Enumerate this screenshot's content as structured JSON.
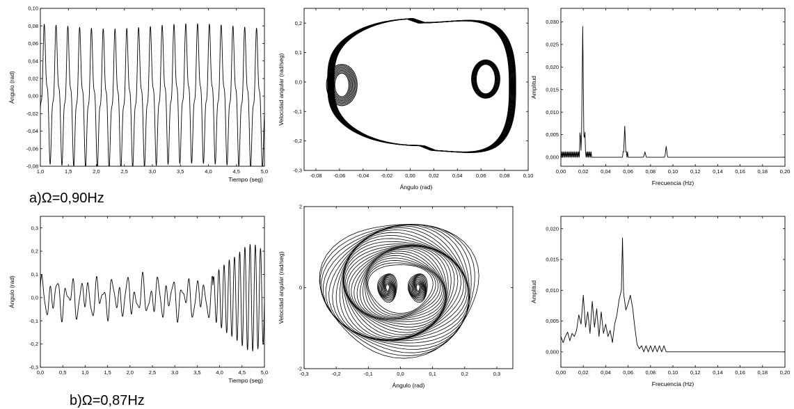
{
  "colors": {
    "line": "#000000",
    "background": "#ffffff"
  },
  "captions": [
    {
      "letter": "a)",
      "symbol": "Ω",
      "value": "=0,90Hz"
    },
    {
      "letter": "b)",
      "symbol": "Ω",
      "value": "=0,87Hz"
    }
  ],
  "chart_data": [
    {
      "id": "a-time",
      "type": "line",
      "xlabel": "Tiempo (seg)",
      "ylabel": "Ángulo (rad)",
      "xlim": [
        1.0,
        5.0
      ],
      "ylim": [
        -0.08,
        0.1
      ],
      "xticks": [
        "1,0",
        "1,5",
        "2,0",
        "2,5",
        "3,0",
        "3,5",
        "4,0",
        "4,5",
        "5,0"
      ],
      "yticks": [
        "-0,08",
        "-0,06",
        "-0,04",
        "-0,02",
        "0,00",
        "0,02",
        "0,04",
        "0,06",
        "0,08",
        "0,10"
      ],
      "grid": false,
      "signal": {
        "amplitude": 0.062,
        "frequency_hz": 4.75,
        "harmonic_amplitude": 0.018,
        "cycles": 19
      }
    },
    {
      "id": "a-phase",
      "type": "line",
      "xlabel": "Ángulo (rad)",
      "ylabel": "Velocidad angular (rad/seg)",
      "xlim": [
        -0.09,
        0.1
      ],
      "ylim": [
        -0.3,
        0.25
      ],
      "xticks": [
        "-0,08",
        "-0,06",
        "-0,04",
        "-0,02",
        "0,00",
        "0,02",
        "0,04",
        "0,06",
        "0,08",
        "0,10"
      ],
      "yticks": [
        "-0,3",
        "-0,2",
        "-0,1",
        "0,0",
        "0,1",
        "0,2"
      ],
      "grid": false,
      "orbits": [
        {
          "role": "outer",
          "x_range": [
            -0.067,
            0.087
          ],
          "y_range": [
            -0.215,
            0.215
          ]
        },
        {
          "role": "inner-left",
          "center": [
            -0.058,
            -0.01
          ],
          "half_width": [
            0.006,
            0.013
          ],
          "half_height": [
            0.04,
            0.07
          ]
        },
        {
          "role": "inner-right",
          "center": [
            0.064,
            0.01
          ],
          "half_width": [
            0.008,
            0.012
          ],
          "half_height": [
            0.05,
            0.065
          ]
        }
      ]
    },
    {
      "id": "a-spectrum",
      "type": "line",
      "xlabel": "Frecuencia (Hz)",
      "ylabel": "Amplitud",
      "xlim": [
        0.0,
        0.2
      ],
      "ylim": [
        -0.002,
        0.033
      ],
      "xticks": [
        "0,00",
        "0,02",
        "0,04",
        "0,06",
        "0,08",
        "0,10",
        "0,12",
        "0,14",
        "0,16",
        "0,18",
        "0,20"
      ],
      "yticks": [
        "0,000",
        "0,005",
        "0,010",
        "0,015",
        "0,020",
        "0,025",
        "0,030"
      ],
      "grid": false,
      "peaks": [
        {
          "x": 0.0195,
          "y": 0.029
        },
        {
          "x": 0.057,
          "y": 0.0069
        },
        {
          "x": 0.075,
          "y": 0.0012
        },
        {
          "x": 0.094,
          "y": 0.0024
        }
      ],
      "noise_floor": 0.0012,
      "noise_range": [
        0.0,
        0.028
      ]
    },
    {
      "id": "b-time",
      "type": "line",
      "xlabel": "Tiempo (seg)",
      "ylabel": "Ángulo (rad)",
      "xlim": [
        0.0,
        5.0
      ],
      "ylim": [
        -0.3,
        0.35
      ],
      "xticks": [
        "0,0",
        "0,5",
        "1,0",
        "1,5",
        "2,0",
        "2,5",
        "3,0",
        "3,5",
        "4,0",
        "4,5",
        "5,0"
      ],
      "yticks": [
        "-0,3",
        "-0,2",
        "-0,1",
        "0,0",
        "0,1",
        "0,2",
        "0,3"
      ],
      "grid": false,
      "signal": {
        "amplitude_low": 0.085,
        "amplitude_high": 0.23,
        "switch_time": 3.85,
        "frequency_hz": 5.2
      }
    },
    {
      "id": "b-phase",
      "type": "line",
      "xlabel": "Ángulo (rad)",
      "ylabel": "Velocidad angular (rad/seg)",
      "xlim": [
        -0.3,
        0.35
      ],
      "ylim": [
        -2,
        2
      ],
      "xticks": [
        "-0,3",
        "-0,2",
        "-0,1",
        "0,0",
        "0,1",
        "0,2",
        "0,3"
      ],
      "yticks": [
        "-2",
        "0",
        "2"
      ],
      "grid": false,
      "orbits": [
        {
          "role": "outer",
          "center": [
            0.0,
            0.0
          ],
          "rx_range": [
            0.1,
            0.245
          ],
          "ry_range": [
            0.6,
            1.65
          ],
          "loops": 26
        },
        {
          "role": "inner-left",
          "center": [
            -0.04,
            0.0
          ],
          "rx_range": [
            0.005,
            0.03
          ],
          "ry_range": [
            0.08,
            0.35
          ],
          "loops": 12
        },
        {
          "role": "inner-right",
          "center": [
            0.055,
            0.0
          ],
          "rx_range": [
            0.005,
            0.03
          ],
          "ry_range": [
            0.08,
            0.35
          ],
          "loops": 12
        }
      ]
    },
    {
      "id": "b-spectrum",
      "type": "line",
      "xlabel": "Frecuencia (Hz)",
      "ylabel": "Amplitud",
      "xlim": [
        0.0,
        0.2
      ],
      "ylim": [
        -0.0025,
        0.022
      ],
      "xticks": [
        "0,00",
        "0,02",
        "0,04",
        "0,06",
        "0,08",
        "0,10",
        "0,12",
        "0,14",
        "0,16",
        "0,18",
        "0,20"
      ],
      "yticks": [
        "0,000",
        "0,005",
        "0,010",
        "0,015",
        "0,020"
      ],
      "grid": false,
      "points": [
        [
          0.0,
          0.0025
        ],
        [
          0.002,
          0.0015
        ],
        [
          0.004,
          0.0025
        ],
        [
          0.006,
          0.0032
        ],
        [
          0.008,
          0.0018
        ],
        [
          0.01,
          0.003
        ],
        [
          0.012,
          0.0025
        ],
        [
          0.014,
          0.0035
        ],
        [
          0.016,
          0.006
        ],
        [
          0.018,
          0.0045
        ],
        [
          0.02,
          0.0092
        ],
        [
          0.022,
          0.004
        ],
        [
          0.024,
          0.0065
        ],
        [
          0.026,
          0.003
        ],
        [
          0.028,
          0.0082
        ],
        [
          0.03,
          0.004
        ],
        [
          0.032,
          0.007
        ],
        [
          0.034,
          0.0025
        ],
        [
          0.036,
          0.0065
        ],
        [
          0.038,
          0.003
        ],
        [
          0.04,
          0.0045
        ],
        [
          0.042,
          0.0025
        ],
        [
          0.044,
          0.0035
        ],
        [
          0.046,
          0.0015
        ],
        [
          0.048,
          0.0045
        ],
        [
          0.05,
          0.006
        ],
        [
          0.052,
          0.0085
        ],
        [
          0.054,
          0.01
        ],
        [
          0.055,
          0.0185
        ],
        [
          0.056,
          0.0095
        ],
        [
          0.058,
          0.0068
        ],
        [
          0.06,
          0.0078
        ],
        [
          0.062,
          0.0092
        ],
        [
          0.064,
          0.0072
        ],
        [
          0.066,
          0.004
        ],
        [
          0.068,
          0.0012
        ],
        [
          0.07,
          0.0005
        ],
        [
          0.072,
          0.001
        ],
        [
          0.074,
          0.0
        ],
        [
          0.076,
          0.001
        ],
        [
          0.078,
          0.0
        ],
        [
          0.08,
          0.001
        ],
        [
          0.082,
          0.0
        ],
        [
          0.084,
          0.001
        ],
        [
          0.086,
          0.0
        ],
        [
          0.088,
          0.001
        ],
        [
          0.09,
          0.0
        ],
        [
          0.092,
          0.001
        ],
        [
          0.094,
          0.0
        ],
        [
          0.2,
          0.0
        ]
      ]
    }
  ]
}
